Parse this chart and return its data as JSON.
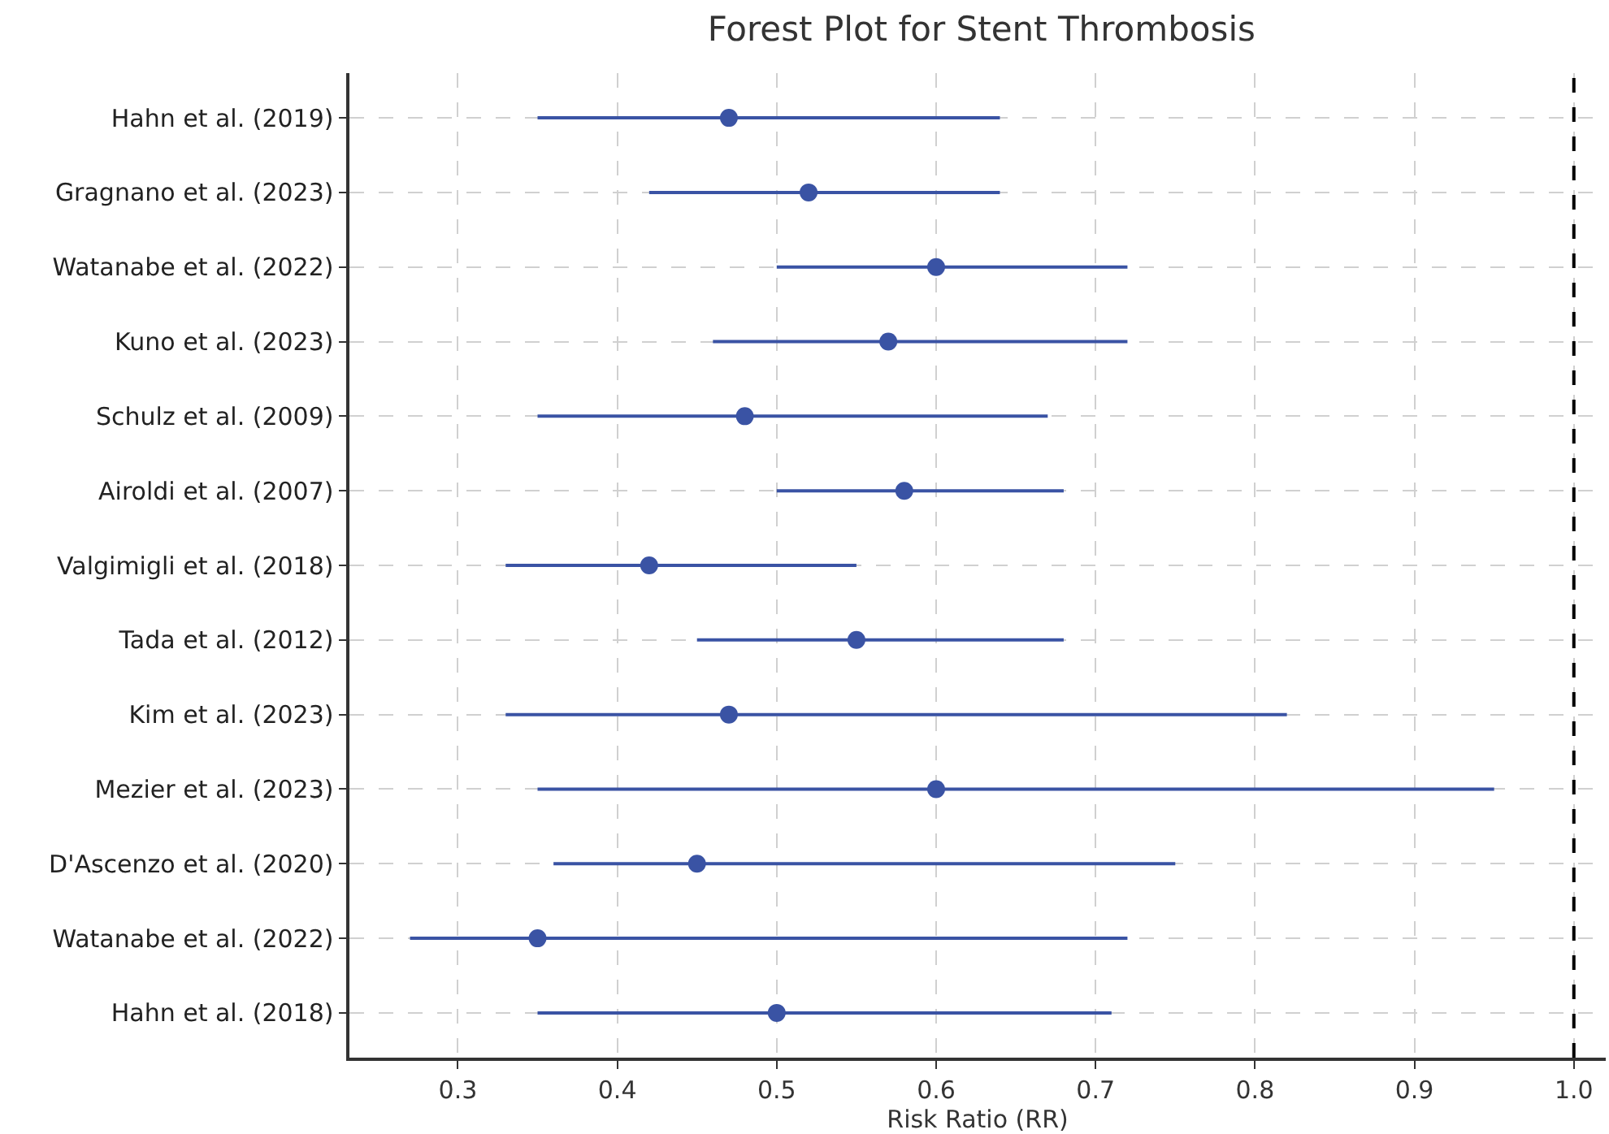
{
  "chart_data": {
    "type": "scatter",
    "orientation": "horizontal",
    "title": "Forest Plot for Stent Thrombosis",
    "xlabel": "Risk Ratio (RR)",
    "categories": [
      "Hahn et al. (2019)",
      "Gragnano et al. (2023)",
      "Watanabe et al. (2022)",
      "Kuno et al. (2023)",
      "Schulz et al. (2009)",
      "Airoldi et al. (2007)",
      "Valgimigli et al. (2018)",
      "Tada et al. (2012)",
      "Kim et al. (2023)",
      "Mezier et al. (2023)",
      "D'Ascenzo et al. (2020)",
      "Watanabe et al. (2022)",
      "Hahn et al. (2018)"
    ],
    "series": [
      {
        "color": "#3a53a4",
        "values": [
          0.47,
          0.52,
          0.6,
          0.57,
          0.48,
          0.58,
          0.42,
          0.55,
          0.47,
          0.6,
          0.45,
          0.35,
          0.5
        ],
        "errors": [
          [
            0.35,
            0.64
          ],
          [
            0.42,
            0.64
          ],
          [
            0.5,
            0.72
          ],
          [
            0.46,
            0.72
          ],
          [
            0.35,
            0.67
          ],
          [
            0.5,
            0.68
          ],
          [
            0.33,
            0.55
          ],
          [
            0.45,
            0.68
          ],
          [
            0.33,
            0.82
          ],
          [
            0.35,
            0.95
          ],
          [
            0.36,
            0.75
          ],
          [
            0.27,
            0.72
          ],
          [
            0.35,
            0.71
          ]
        ]
      }
    ],
    "xlim": [
      0.232,
      1.02
    ],
    "xticks": [
      {
        "value": 0.3,
        "label": "0.3"
      },
      {
        "value": 0.4,
        "label": "0.4"
      },
      {
        "value": 0.5,
        "label": "0.5"
      },
      {
        "value": 0.6,
        "label": "0.6"
      },
      {
        "value": 0.7,
        "label": "0.7"
      },
      {
        "value": 0.8,
        "label": "0.8"
      },
      {
        "value": 0.9,
        "label": "0.9"
      },
      {
        "value": 1.0,
        "label": "1.0"
      }
    ],
    "ref_lines": [
      {
        "axis": "x",
        "value": 1.0,
        "color": "#000000",
        "line_style": "dashed"
      }
    ],
    "grid": true,
    "marker": "circle"
  }
}
